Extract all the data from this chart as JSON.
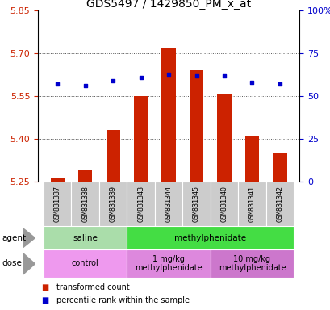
{
  "title": "GDS5497 / 1429850_PM_x_at",
  "samples": [
    "GSM831337",
    "GSM831338",
    "GSM831339",
    "GSM831343",
    "GSM831344",
    "GSM831345",
    "GSM831340",
    "GSM831341",
    "GSM831342"
  ],
  "transformed_counts": [
    5.26,
    5.29,
    5.43,
    5.55,
    5.72,
    5.64,
    5.56,
    5.41,
    5.35
  ],
  "percentile_ranks": [
    57,
    56,
    59,
    61,
    63,
    62,
    62,
    58,
    57
  ],
  "ylim_left": [
    5.25,
    5.85
  ],
  "ylim_right": [
    0,
    100
  ],
  "yticks_left": [
    5.25,
    5.4,
    5.55,
    5.7,
    5.85
  ],
  "yticks_right": [
    0,
    25,
    50,
    75,
    100
  ],
  "bar_color": "#cc2200",
  "dot_color": "#0000cc",
  "bar_baseline": 5.25,
  "agent_groups": [
    {
      "label": "saline",
      "start": 0,
      "end": 3,
      "color": "#aaddaa"
    },
    {
      "label": "methylphenidate",
      "start": 3,
      "end": 9,
      "color": "#44dd44"
    }
  ],
  "dose_groups": [
    {
      "label": "control",
      "start": 0,
      "end": 3,
      "color": "#ee99ee"
    },
    {
      "label": "1 mg/kg\nmethylphenidate",
      "start": 3,
      "end": 6,
      "color": "#dd88dd"
    },
    {
      "label": "10 mg/kg\nmethylphenidate",
      "start": 6,
      "end": 9,
      "color": "#cc77cc"
    }
  ],
  "legend_items": [
    {
      "color": "#cc2200",
      "label": "transformed count"
    },
    {
      "color": "#0000cc",
      "label": "percentile rank within the sample"
    }
  ],
  "grid_color": "#555555",
  "tick_label_color_left": "#cc2200",
  "tick_label_color_right": "#0000cc",
  "title_fontsize": 10,
  "tick_fontsize": 8,
  "bar_width": 0.5,
  "label_fontsize": 6.0,
  "row_fontsize": 7.5,
  "legend_fontsize": 7.0
}
